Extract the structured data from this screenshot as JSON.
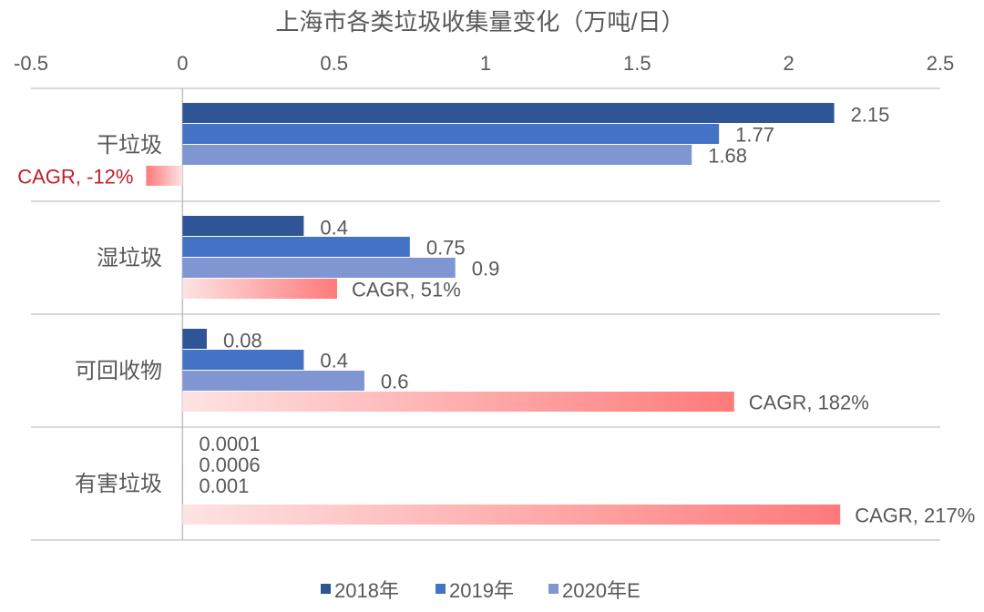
{
  "chart_data": {
    "type": "bar",
    "orientation": "horizontal",
    "title": "上海市各类垃圾收集量变化（万吨/日）",
    "xlim": [
      -0.5,
      2.5
    ],
    "xticks": [
      "-0.5",
      "0",
      "0.5",
      "1",
      "1.5",
      "2",
      "2.5"
    ],
    "xtick_values": [
      -0.5,
      0,
      0.5,
      1,
      1.5,
      2,
      2.5
    ],
    "axis_position": "top",
    "grid": "horizontal category separators",
    "legend_position": "bottom",
    "categories": [
      "干垃圾",
      "湿垃圾",
      "可回收物",
      "有害垃圾"
    ],
    "series": [
      {
        "name": "2018年",
        "color": "#2F5597",
        "values": [
          2.15,
          0.4,
          0.08,
          0.0001
        ],
        "labels": [
          "2.15",
          "0.4",
          "0.08",
          "0.0001"
        ]
      },
      {
        "name": "2019年",
        "color": "#4472C4",
        "values": [
          1.77,
          0.75,
          0.4,
          0.0006
        ],
        "labels": [
          "1.77",
          "0.75",
          "0.4",
          "0.0006"
        ]
      },
      {
        "name": "2020年E",
        "color": "#7F96D2",
        "values": [
          1.68,
          0.9,
          0.6,
          0.001
        ],
        "labels": [
          "1.68",
          "0.9",
          "0.6",
          "0.001"
        ]
      }
    ],
    "cagr": {
      "values_percent": [
        -12,
        51,
        182,
        217
      ],
      "labels": [
        "CAGR, -12%",
        "CAGR, 51%",
        "CAGR, 182%",
        "CAGR, 217%"
      ],
      "gradient_colors": [
        "#FDE3E3",
        "#FF7A7A"
      ],
      "negative_label_color": "#C0202A"
    }
  }
}
